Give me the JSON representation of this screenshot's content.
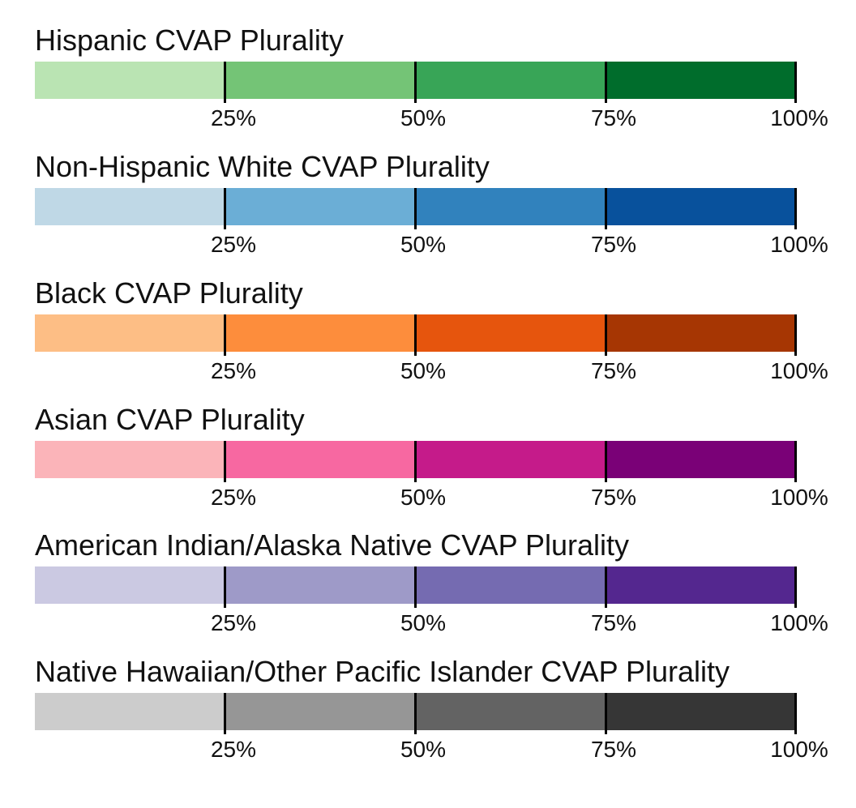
{
  "legends": [
    {
      "title": "Hispanic CVAP Plurality",
      "colors": [
        "#bae4b3",
        "#74c476",
        "#38a557",
        "#006d2c"
      ]
    },
    {
      "title": "Non-Hispanic White CVAP Plurality",
      "colors": [
        "#bfd8e6",
        "#6baed6",
        "#3182bd",
        "#08519c"
      ]
    },
    {
      "title": "Black CVAP Plurality",
      "colors": [
        "#fdbe85",
        "#fd8d3c",
        "#e6550d",
        "#a63603"
      ]
    },
    {
      "title": "Asian CVAP Plurality",
      "colors": [
        "#fbb4b9",
        "#f768a1",
        "#c51b8a",
        "#7a0177"
      ]
    },
    {
      "title": "American Indian/Alaska Native CVAP Plurality",
      "colors": [
        "#cbc9e2",
        "#9e9ac8",
        "#756bb1",
        "#54278f"
      ]
    },
    {
      "title": "Native Hawaiian/Other Pacific Islander CVAP Plurality",
      "colors": [
        "#cccccc",
        "#969696",
        "#636363",
        "#363636"
      ]
    }
  ],
  "tick_labels": [
    "25%",
    "50%",
    "75%",
    "100%"
  ]
}
